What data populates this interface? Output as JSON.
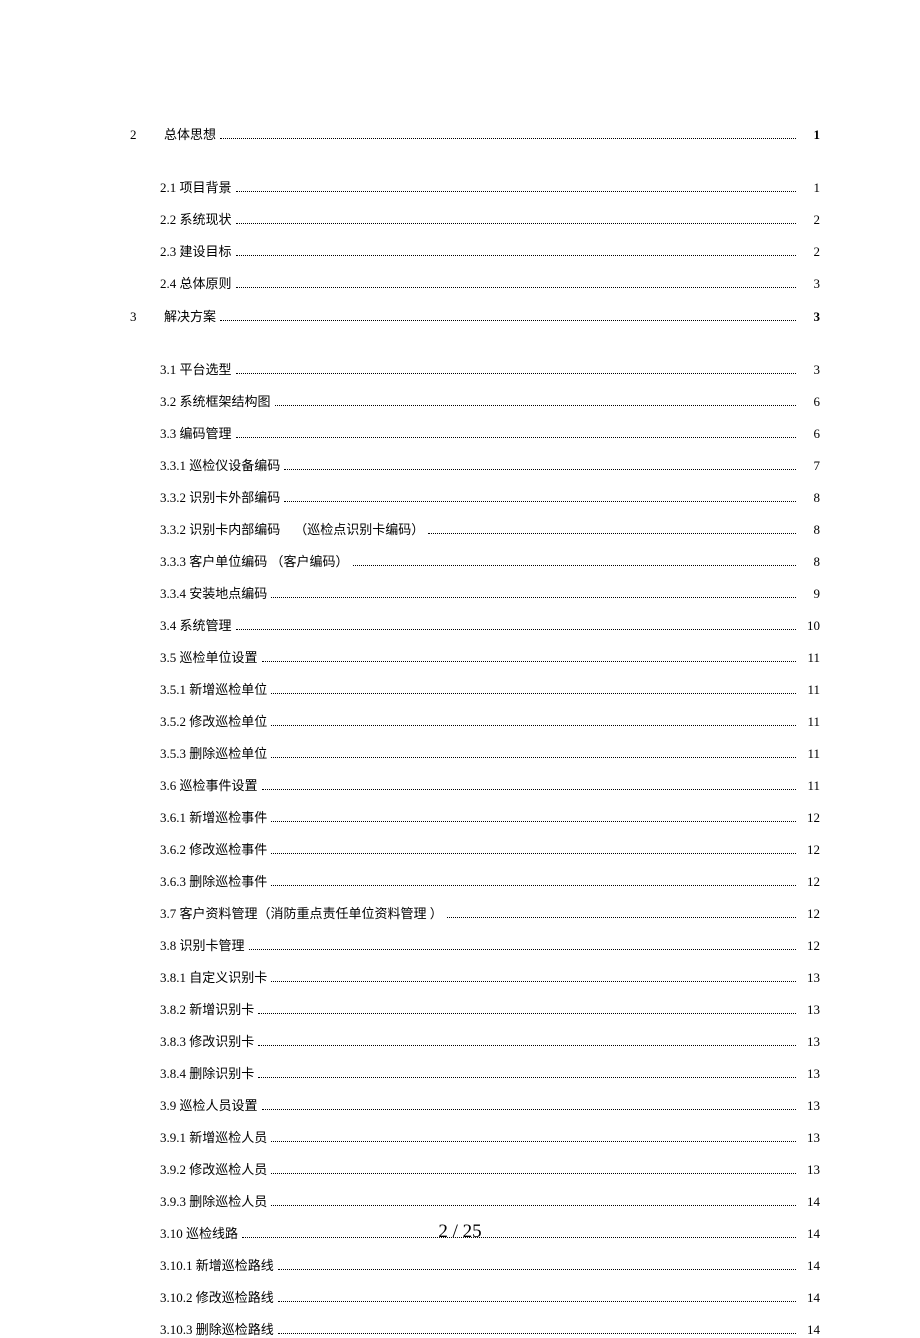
{
  "footer": "2 / 25",
  "sections": [
    {
      "kind": "head",
      "num": "2",
      "label": "总体思想",
      "page": "1",
      "bold": true
    },
    {
      "kind": "sub",
      "label": "2.1 项目背景",
      "page": "1"
    },
    {
      "kind": "sub",
      "label": "2.2 系统现状",
      "page": "2"
    },
    {
      "kind": "sub",
      "label": "2.3 建设目标",
      "page": "2"
    },
    {
      "kind": "sub",
      "label": "2.4 总体原则",
      "page": "3"
    },
    {
      "kind": "head",
      "num": "3",
      "label": "解决方案",
      "page": "3",
      "bold": true
    },
    {
      "kind": "sub",
      "label": "3.1 平台选型",
      "page": "3"
    },
    {
      "kind": "sub",
      "label": "3.2 系统框架结构图",
      "page": "6"
    },
    {
      "kind": "sub",
      "label": "3.3 编码管理",
      "page": "6"
    },
    {
      "kind": "sub",
      "label": "3.3.1 巡检仪设备编码",
      "page": "7"
    },
    {
      "kind": "sub",
      "label": "3.3.2 识别卡外部编码",
      "page": "8"
    },
    {
      "kind": "sub",
      "label": "3.3.2 识别卡内部编码",
      "suffix": "（巡检点识别卡编码）",
      "page": "8"
    },
    {
      "kind": "sub",
      "label": "3.3.3 客户单位编码 （客户编码）",
      "page": "8"
    },
    {
      "kind": "sub",
      "label": "3.3.4 安装地点编码",
      "page": "9"
    },
    {
      "kind": "sub",
      "label": "3.4 系统管理",
      "page": "10"
    },
    {
      "kind": "sub",
      "label": "3.5 巡检单位设置",
      "page": "11"
    },
    {
      "kind": "sub",
      "label": "3.5.1 新增巡检单位",
      "page": "11"
    },
    {
      "kind": "sub",
      "label": "3.5.2 修改巡检单位",
      "page": "11"
    },
    {
      "kind": "sub",
      "label": "3.5.3 删除巡检单位",
      "page": "11"
    },
    {
      "kind": "sub",
      "label": "3.6 巡检事件设置",
      "page": "11"
    },
    {
      "kind": "sub",
      "label": "3.6.1 新增巡检事件",
      "page": "12"
    },
    {
      "kind": "sub",
      "label": "3.6.2 修改巡检事件",
      "page": "12"
    },
    {
      "kind": "sub",
      "label": "3.6.3 删除巡检事件",
      "page": "12"
    },
    {
      "kind": "sub",
      "label": "3.7 客户资料管理（消防重点责任单位资料管理 ）",
      "page": "12"
    },
    {
      "kind": "sub",
      "label": "3.8 识别卡管理",
      "page": "12"
    },
    {
      "kind": "sub",
      "label": "3.8.1 自定义识别卡",
      "page": "13"
    },
    {
      "kind": "sub",
      "label": "3.8.2 新增识别卡",
      "page": "13"
    },
    {
      "kind": "sub",
      "label": "3.8.3 修改识别卡",
      "page": "13"
    },
    {
      "kind": "sub",
      "label": "3.8.4 删除识别卡",
      "page": "13"
    },
    {
      "kind": "sub",
      "label": "3.9 巡检人员设置",
      "page": "13"
    },
    {
      "kind": "sub",
      "label": "3.9.1 新增巡检人员",
      "page": "13"
    },
    {
      "kind": "sub",
      "label": "3.9.2 修改巡检人员",
      "page": "13"
    },
    {
      "kind": "sub",
      "label": "3.9.3 删除巡检人员",
      "page": "14"
    },
    {
      "kind": "sub",
      "label": "3.10 巡检线路",
      "page": "14"
    },
    {
      "kind": "sub",
      "label": "3.10.1 新增巡检路线",
      "page": "14"
    },
    {
      "kind": "sub",
      "label": "3.10.2 修改巡检路线",
      "page": "14"
    },
    {
      "kind": "sub",
      "label": "3.10.3 删除巡检路线",
      "page": "14"
    }
  ]
}
